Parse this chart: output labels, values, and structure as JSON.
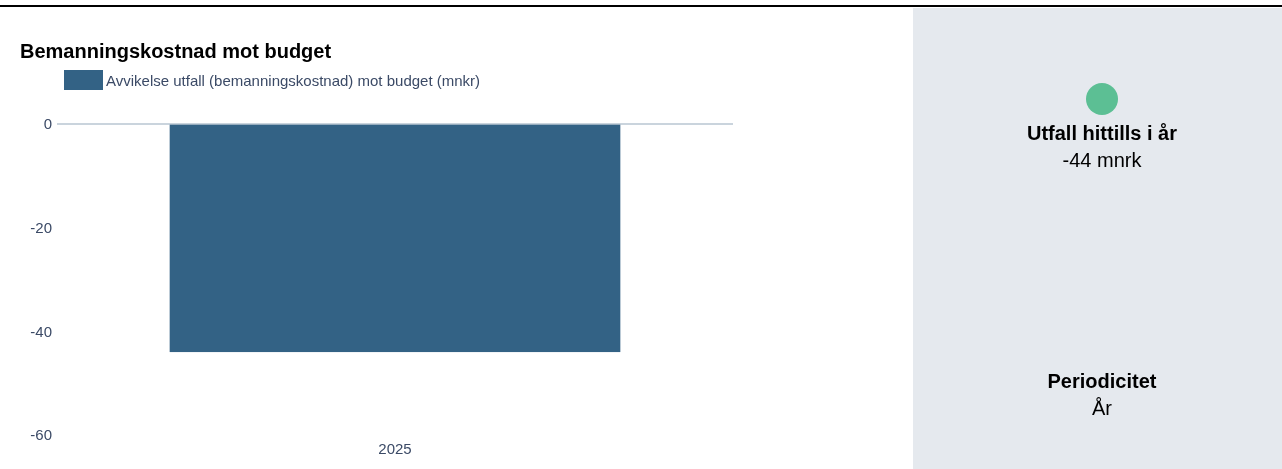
{
  "chart_data": [
    {
      "type": "bar",
      "title": "Bemanningskostnad mot budget",
      "categories": [
        "2025"
      ],
      "series": [
        {
          "name": "Avvikelse utfall (bemanningskostnad) mot budget (mnkr)",
          "color": "#336285",
          "values": [
            -44
          ]
        }
      ],
      "ylim": [
        -60,
        0
      ],
      "yticks": [
        0,
        -20,
        -40,
        -60
      ],
      "legend": "top left"
    },
    {
      "type": "other",
      "annotations": [
        "Utfall hittills i år",
        "-44 mnrk",
        "Periodicitet",
        "År"
      ]
    }
  ]
}
